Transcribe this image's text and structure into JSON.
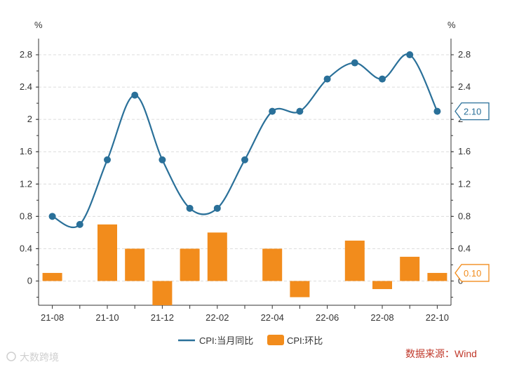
{
  "chart_data": {
    "type": "bar+line",
    "x": [
      "21-08",
      "21-09",
      "21-10",
      "21-11",
      "21-12",
      "22-01",
      "22-02",
      "22-03",
      "22-04",
      "22-05",
      "22-06",
      "22-07",
      "22-08",
      "22-09",
      "22-10"
    ],
    "x_tick_labels": [
      "21-08",
      "21-10",
      "21-12",
      "22-02",
      "22-04",
      "22-06",
      "22-08",
      "22-10"
    ],
    "series": [
      {
        "name": "CPI:当月同比",
        "type": "line",
        "color": "#2a7099",
        "axis": "left",
        "values": [
          0.8,
          0.7,
          1.5,
          2.3,
          1.5,
          0.9,
          0.9,
          1.5,
          2.1,
          2.1,
          2.5,
          2.7,
          2.5,
          2.8,
          2.1
        ]
      },
      {
        "name": "CPI:环比",
        "type": "bar",
        "color": "#f28c1c",
        "axis": "right",
        "values": [
          0.1,
          0.0,
          0.7,
          0.4,
          -0.3,
          0.4,
          0.6,
          0.0,
          0.4,
          -0.2,
          0.0,
          0.5,
          -0.1,
          0.3,
          0.1
        ]
      }
    ],
    "y_left": {
      "unit": "%",
      "ticks": [
        "0",
        "0.4",
        "0.8",
        "1.2",
        "1.6",
        "2",
        "2.4",
        "2.8"
      ],
      "range": [
        -0.3,
        3.0
      ]
    },
    "y_right": {
      "unit": "%",
      "ticks": [
        "0",
        "0.4",
        "0.8",
        "1.2",
        "1.6",
        "2",
        "2.4",
        "2.8"
      ],
      "range": [
        -0.3,
        3.0
      ]
    },
    "callouts": [
      {
        "text": "2.10",
        "series": "CPI:当月同比",
        "color": "#2a7099"
      },
      {
        "text": "0.10",
        "series": "CPI:环比",
        "color": "#f28c1c"
      }
    ],
    "grid": true,
    "legend_position": "bottom-center",
    "source": "数据来源：Wind",
    "watermark": "大数跨境"
  }
}
